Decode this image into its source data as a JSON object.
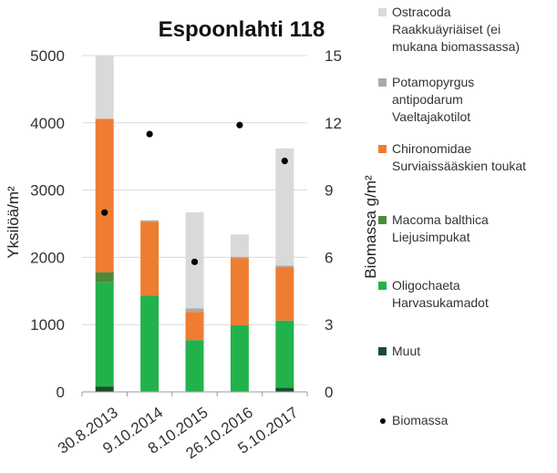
{
  "chart_data": {
    "type": "bar",
    "subtype": "stacked bar with scatter overlay on secondary axis",
    "title": "Espoonlahti 118",
    "xlabel": "",
    "ylabel": "Yksilöä/m²",
    "y2label": "Biomassa g/m²",
    "categories": [
      "30.8.2013",
      "9.10.2014",
      "8.10.2015",
      "26.10.2016",
      "5.10.2017"
    ],
    "ylim": [
      0,
      5000
    ],
    "y2lim": [
      0,
      15
    ],
    "yticks": [
      "0",
      "1000",
      "2000",
      "3000",
      "4000",
      "5000"
    ],
    "y2ticks": [
      "0",
      "3",
      "6",
      "9",
      "12",
      "15"
    ],
    "grid": true,
    "legend_position": "right",
    "series": [
      {
        "name": "Muut",
        "color": "#1d4d2c",
        "values": [
          80,
          10,
          10,
          10,
          60
        ]
      },
      {
        "name": "Oligochaeta\nHarvasukamadot",
        "color": "#22b24c",
        "values": [
          1550,
          1420,
          760,
          980,
          1000
        ]
      },
      {
        "name": "Macoma balthica\nLiejusimpukat",
        "color": "#4e8a3a",
        "values": [
          150,
          0,
          0,
          0,
          0
        ]
      },
      {
        "name": "Chironomidae\nSurviaissääskien toukat",
        "color": "#ef7d31",
        "values": [
          2280,
          1100,
          420,
          1000,
          800
        ]
      },
      {
        "name": "Potamopyrgus\nantipodarum\nVaeltajakotilot",
        "color": "#a9a9a9",
        "values": [
          0,
          20,
          50,
          20,
          20
        ]
      },
      {
        "name": "Ostracoda\nRaakkuäyriäiset (ei\nmukana biomassassa)",
        "color": "#d9d9d9",
        "values": [
          1000,
          0,
          1430,
          330,
          1740
        ]
      }
    ],
    "scatter": {
      "name": "Biomassa",
      "color": "#000000",
      "axis": "y2",
      "values": [
        8.0,
        11.5,
        5.8,
        11.9,
        10.3
      ]
    }
  }
}
